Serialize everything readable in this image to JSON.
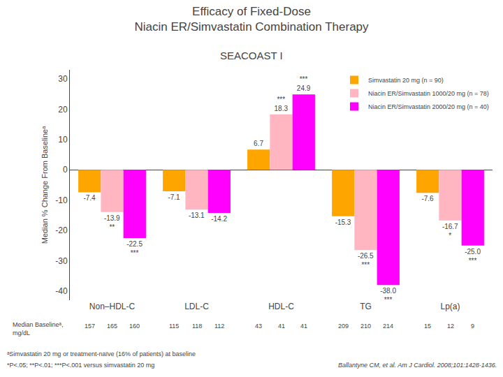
{
  "chart_data": {
    "type": "bar",
    "title": "Efficacy of Fixed-Dose\nNiacin ER/Simvastatin Combination Therapy",
    "subtitle": "SEACOAST I",
    "ylabel": "Median % Change From Baselineᵃ",
    "categories": [
      "Non–HDL-C",
      "LDL-C",
      "HDL-C",
      "TG",
      "Lp(a)"
    ],
    "series": [
      {
        "name": "Simvastatin 20 mg (n = 90)",
        "color": "#FFA500",
        "values": [
          -7.4,
          -7.1,
          6.7,
          -15.3,
          -7.6
        ],
        "value_labels": [
          "-7.4",
          "-7.1",
          "6.7",
          "-15.3",
          "-7.6"
        ],
        "significance": [
          null,
          null,
          null,
          null,
          null
        ],
        "median_baselines": [
          157,
          115,
          43,
          209,
          15
        ]
      },
      {
        "name": "Niacin ER/Simvastatin 1000/20 mg (n = 78)",
        "color": "#FFB6C1",
        "values": [
          -13.9,
          -13.1,
          18.3,
          -26.5,
          -16.7
        ],
        "value_labels": [
          "-13.9",
          "-13.1",
          "18.3",
          "-26.5",
          "-16.7"
        ],
        "significance": [
          "**",
          null,
          "***",
          "***",
          "*"
        ],
        "median_baselines": [
          165,
          118,
          41,
          210,
          12
        ]
      },
      {
        "name": "Niacin ER/Simvastatin 2000/20 mg (n = 40)",
        "color": "#FF00FF",
        "values": [
          -22.5,
          -14.2,
          24.9,
          -38.0,
          -25.0
        ],
        "value_labels": [
          "-22.5",
          "-14.2",
          "24.9",
          "-38.0",
          "-25.0"
        ],
        "significance": [
          "***",
          null,
          "***",
          "***",
          "***"
        ],
        "median_baselines": [
          160,
          112,
          41,
          214,
          9
        ]
      }
    ],
    "ylim": [
      -43,
      33
    ],
    "yticks": [
      -40,
      -30,
      -20,
      -10,
      0,
      10,
      20,
      30
    ],
    "grid": false,
    "legend": "upper right",
    "data_labels": true,
    "median_baseline_label": "Median Baselineᵃ,\nmg/dL",
    "footnotes": [
      "ᵃSimvastatin 20 mg or treatment-naïve (16% of patients) at baseline",
      "*P<.05; **P<.01; ***P<.001 versus simvastatin 20 mg"
    ],
    "reference": "Ballantyne CM, et al. Am J Cardiol. 2008;101:1428-1436."
  }
}
